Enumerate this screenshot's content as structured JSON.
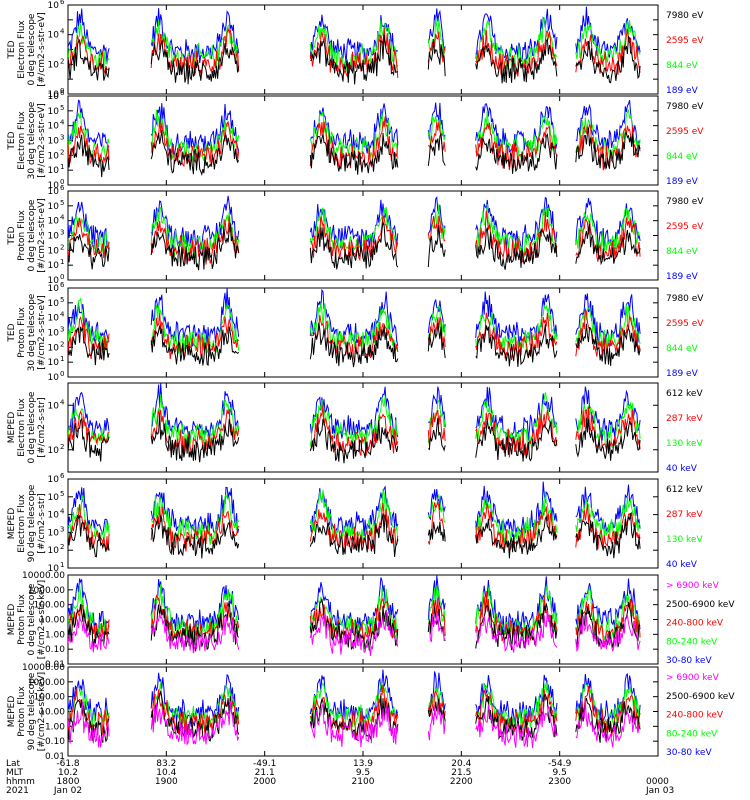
{
  "colors": {
    "blue": "#0000ff",
    "red": "#ff0000",
    "green": "#00ff00",
    "black": "#000000",
    "magenta": "#ff00ff"
  },
  "chart_data": [
    {
      "type": "line",
      "ylabel": [
        "TED",
        "Electron Flux",
        "0 deg telescope",
        "[#/cm2-s-str-eV]"
      ],
      "yscale": "log",
      "ylim": [
        1,
        1000000
      ],
      "y_ticks": [
        {
          "value": 1,
          "base": "10",
          "exp": "0"
        },
        {
          "value": 100,
          "base": "10",
          "exp": "2"
        },
        {
          "value": 10000,
          "base": "10",
          "exp": "4"
        },
        {
          "value": 1000000,
          "base": "10",
          "exp": "6"
        }
      ],
      "series": [
        {
          "name": "7980 eV",
          "color": "#000000"
        },
        {
          "name": "2595 eV",
          "color": "#ff0000"
        },
        {
          "name": "844 eV",
          "color": "#00ff00"
        },
        {
          "name": "189 eV",
          "color": "#0000ff"
        }
      ]
    },
    {
      "type": "line",
      "ylabel": [
        "TED",
        "Electron Flux",
        "30 deg telescope",
        "[#/cm2-s-str-eV]"
      ],
      "yscale": "log",
      "ylim": [
        1,
        1000000
      ],
      "y_ticks": [
        {
          "value": 1,
          "base": "10",
          "exp": "0"
        },
        {
          "value": 10,
          "base": "10",
          "exp": "1"
        },
        {
          "value": 100,
          "base": "10",
          "exp": "2"
        },
        {
          "value": 1000,
          "base": "10",
          "exp": "3"
        },
        {
          "value": 10000,
          "base": "10",
          "exp": "4"
        },
        {
          "value": 100000,
          "base": "10",
          "exp": "5"
        },
        {
          "value": 1000000,
          "base": "10",
          "exp": "6"
        }
      ],
      "series": [
        {
          "name": "7980 eV",
          "color": "#000000"
        },
        {
          "name": "2595 eV",
          "color": "#ff0000"
        },
        {
          "name": "844 eV",
          "color": "#00ff00"
        },
        {
          "name": "189 eV",
          "color": "#0000ff"
        }
      ]
    },
    {
      "type": "line",
      "ylabel": [
        "TED",
        "Proton Flux",
        "0 deg telescope",
        "[#/cm2-s-str-eV]"
      ],
      "yscale": "log",
      "ylim": [
        1,
        1000000
      ],
      "y_ticks": [
        {
          "value": 1,
          "base": "10",
          "exp": "0"
        },
        {
          "value": 10,
          "base": "10",
          "exp": "1"
        },
        {
          "value": 100,
          "base": "10",
          "exp": "2"
        },
        {
          "value": 1000,
          "base": "10",
          "exp": "3"
        },
        {
          "value": 10000,
          "base": "10",
          "exp": "4"
        },
        {
          "value": 100000,
          "base": "10",
          "exp": "5"
        },
        {
          "value": 1000000,
          "base": "10",
          "exp": "6"
        }
      ],
      "series": [
        {
          "name": "7980 eV",
          "color": "#000000"
        },
        {
          "name": "2595 eV",
          "color": "#ff0000"
        },
        {
          "name": "844 eV",
          "color": "#00ff00"
        },
        {
          "name": "189 eV",
          "color": "#0000ff"
        }
      ]
    },
    {
      "type": "line",
      "ylabel": [
        "TED",
        "Proton Flux",
        "30 deg telescope",
        "[#/cm2-s-str-eV]"
      ],
      "yscale": "log",
      "ylim": [
        1,
        1000000
      ],
      "y_ticks": [
        {
          "value": 1,
          "base": "10",
          "exp": "0"
        },
        {
          "value": 10,
          "base": "10",
          "exp": "1"
        },
        {
          "value": 100,
          "base": "10",
          "exp": "2"
        },
        {
          "value": 1000,
          "base": "10",
          "exp": "3"
        },
        {
          "value": 10000,
          "base": "10",
          "exp": "4"
        },
        {
          "value": 100000,
          "base": "10",
          "exp": "5"
        },
        {
          "value": 1000000,
          "base": "10",
          "exp": "6"
        }
      ],
      "series": [
        {
          "name": "7980 eV",
          "color": "#000000"
        },
        {
          "name": "2595 eV",
          "color": "#ff0000"
        },
        {
          "name": "844 eV",
          "color": "#00ff00"
        },
        {
          "name": "189 eV",
          "color": "#0000ff"
        }
      ]
    },
    {
      "type": "line",
      "ylabel": [
        "MEPED",
        "Electron Flux",
        "0 deg telescope",
        "[#/cm2-s-str]"
      ],
      "yscale": "log",
      "ylim": [
        10,
        100000
      ],
      "y_ticks": [
        {
          "value": 100,
          "base": "10",
          "exp": "2"
        },
        {
          "value": 10000,
          "base": "10",
          "exp": "4"
        }
      ],
      "series": [
        {
          "name": "612 keV",
          "color": "#000000"
        },
        {
          "name": "287 keV",
          "color": "#ff0000"
        },
        {
          "name": "130 keV",
          "color": "#00ff00"
        },
        {
          "name": "40 keV",
          "color": "#0000ff"
        }
      ]
    },
    {
      "type": "line",
      "ylabel": [
        "MEPED",
        "Electron Flux",
        "90 deg telescope",
        "[#/cm2-s-str]"
      ],
      "yscale": "log",
      "ylim": [
        10,
        1000000
      ],
      "y_ticks": [
        {
          "value": 10,
          "base": "10",
          "exp": "1"
        },
        {
          "value": 100,
          "base": "10",
          "exp": "2"
        },
        {
          "value": 1000,
          "base": "10",
          "exp": "3"
        },
        {
          "value": 10000,
          "base": "10",
          "exp": "4"
        },
        {
          "value": 100000,
          "base": "10",
          "exp": "5"
        },
        {
          "value": 1000000,
          "base": "10",
          "exp": "6"
        }
      ],
      "series": [
        {
          "name": "612 keV",
          "color": "#000000"
        },
        {
          "name": "287 keV",
          "color": "#ff0000"
        },
        {
          "name": "130 keV",
          "color": "#00ff00"
        },
        {
          "name": "40 keV",
          "color": "#0000ff"
        }
      ]
    },
    {
      "type": "line",
      "ylabel": [
        "MEPED",
        "Proton Flux",
        "0 deg telescope",
        "[#/cm2-s-str-keV]"
      ],
      "yscale": "log",
      "ylim": [
        0.01,
        10000
      ],
      "y_ticks": [
        {
          "value": 0.01,
          "label": "0.01"
        },
        {
          "value": 0.1,
          "label": "0.10"
        },
        {
          "value": 1,
          "label": "1.00"
        },
        {
          "value": 10,
          "label": "10.00"
        },
        {
          "value": 100,
          "label": "100.00"
        },
        {
          "value": 1000,
          "label": "1000.00"
        },
        {
          "value": 10000,
          "label": "10000.00"
        }
      ],
      "series": [
        {
          "name": "> 6900 keV",
          "color": "#ff00ff"
        },
        {
          "name": "2500-6900 keV",
          "color": "#000000"
        },
        {
          "name": "240-800 keV",
          "color": "#ff0000"
        },
        {
          "name": "80-240 keV",
          "color": "#00ff00"
        },
        {
          "name": "30-80 keV",
          "color": "#0000ff"
        }
      ]
    },
    {
      "type": "line",
      "ylabel": [
        "MEPED",
        "Proton Flux",
        "90 deg telescope",
        "[#/cm2-s-str-keV]"
      ],
      "yscale": "log",
      "ylim": [
        0.01,
        10000
      ],
      "y_ticks": [
        {
          "value": 0.01,
          "label": "0.01"
        },
        {
          "value": 0.1,
          "label": "0.10"
        },
        {
          "value": 1,
          "label": "1.00"
        },
        {
          "value": 10,
          "label": "10.00"
        },
        {
          "value": 100,
          "label": "100.00"
        },
        {
          "value": 1000,
          "label": "1000.00"
        },
        {
          "value": 10000,
          "label": "10000.00"
        }
      ],
      "series": [
        {
          "name": "> 6900 keV",
          "color": "#ff00ff"
        },
        {
          "name": "2500-6900 keV",
          "color": "#000000"
        },
        {
          "name": "240-800 keV",
          "color": "#ff0000"
        },
        {
          "name": "80-240 keV",
          "color": "#00ff00"
        },
        {
          "name": "30-80 keV",
          "color": "#0000ff"
        }
      ]
    }
  ],
  "time_axis": {
    "row_labels": [
      "Lat",
      "MLT",
      "hhmm",
      "2021"
    ],
    "ticks": [
      {
        "value": 0,
        "lat": "-61.8",
        "mlt": "10.2",
        "hhmm": "1800",
        "date": "Jan 02"
      },
      {
        "value": 1,
        "lat": "83.2",
        "mlt": "10.4",
        "hhmm": "1900"
      },
      {
        "value": 2,
        "lat": "-49.1",
        "mlt": "21.1",
        "hhmm": "2000"
      },
      {
        "value": 3,
        "lat": "13.9",
        "mlt": "9.5",
        "hhmm": "2100"
      },
      {
        "value": 4,
        "lat": "20.4",
        "mlt": "21.5",
        "hhmm": "2200"
      },
      {
        "value": 5,
        "lat": "-54.9",
        "mlt": "9.5",
        "hhmm": "2300"
      },
      {
        "value": 6,
        "hhmm": "0000",
        "date": "Jan 03"
      }
    ]
  }
}
